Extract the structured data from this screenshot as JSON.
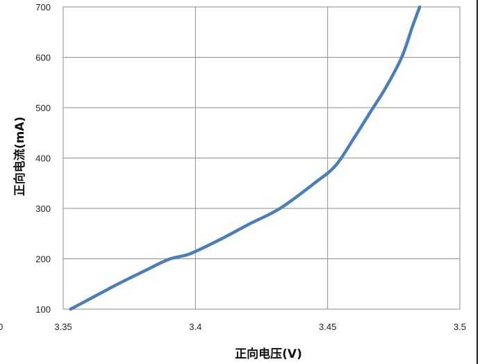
{
  "chart_data": {
    "type": "line",
    "title": "",
    "xlabel": "正向电压(V)",
    "ylabel": "正向电流(mA)",
    "xlim": [
      3.35,
      3.5
    ],
    "ylim": [
      100,
      700
    ],
    "x_ticks": [
      3.35,
      3.4,
      3.45,
      3.5
    ],
    "x_tick_labels": [
      "3.35",
      "3.4",
      "3.45",
      "3.5"
    ],
    "y_ticks": [
      100,
      200,
      300,
      400,
      500,
      600,
      700
    ],
    "y_tick_labels": [
      "100",
      "200",
      "300",
      "400",
      "500",
      "600",
      "700"
    ],
    "grid": true,
    "legend": "none",
    "series": [
      {
        "color": "#4a7ebb",
        "x": [
          3.3528,
          3.36,
          3.37,
          3.38,
          3.39,
          3.398,
          3.41,
          3.42,
          3.432,
          3.445,
          3.453,
          3.46,
          3.466,
          3.472,
          3.478,
          3.482,
          3.4848
        ],
        "y": [
          100,
          120,
          148,
          174,
          199,
          210,
          240,
          268,
          300,
          350,
          385,
          440,
          490,
          540,
          600,
          660,
          700
        ]
      }
    ]
  },
  "edge_glyph": "0"
}
